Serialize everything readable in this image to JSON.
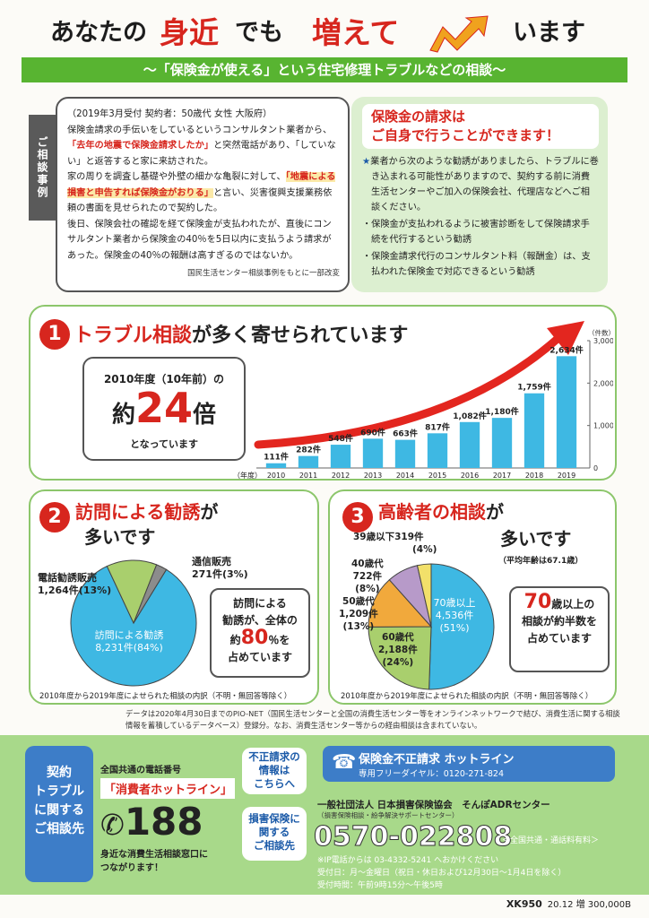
{
  "header": {
    "part1": "あなたの",
    "part2": "身近",
    "part3": "でも",
    "part4": "増えて",
    "part5": "います",
    "subtitle": "～「保険金が使える」という住宅修理トラブルなどの相談～"
  },
  "case": {
    "tab_label": "ご相談事例",
    "header": "（2019年3月受付 契約者：50歳代 女性 大阪府）",
    "p1_a": "保険金請求の手伝いをしているというコンサルタント業者から、",
    "p1_red": "「去年の地震で保険金請求したか」",
    "p1_b": "と突然電話があり、「していない」と返答すると家に来訪された。",
    "p2_a": "家の周りを調査し基礎や外壁の細かな亀裂に対して、",
    "p2_red": "「地震による損害と申告すれば保険金がおりる」",
    "p2_b": "と言い、災害復興支援業務依頼の書面を見せられたので契約した。",
    "p3": "後日、保険会社の確認を経て保険金が支払われたが、直後にコンサルタント業者から保険金の40％を5日以内に支払うよう請求があった。保険金の40％の報酬は高すぎるのではないか。",
    "source": "国民生活センター相談事例をもとに一部改変"
  },
  "advice": {
    "title_line1": "保険金の請求は",
    "title_line2": "ご自身で行うことができます！",
    "star": "★",
    "main": "業者から次のような勧誘がありましたら、トラブルに巻き込まれる可能性がありますので、契約する前に消費生活センターやご加入の保険会社、代理店などへご相談ください。",
    "bullet1": "・保険金が支払われるように被害診断をして保険請求手続を代行するという勧誘",
    "bullet2": "・保険金請求代行のコンサルタント料（報酬金）は、支払われた保険金で対応できるという勧誘"
  },
  "sec1": {
    "num": "1",
    "title_red": "トラブル相談",
    "title_black": "が多く寄せられています",
    "callout_l1": "2010年度（10年前）の",
    "callout_pre": "約",
    "callout_big": "24",
    "callout_post": "倍",
    "callout_l3": "となっています"
  },
  "chart_data": [
    {
      "type": "bar",
      "categories": [
        "2010",
        "2011",
        "2012",
        "2013",
        "2014",
        "2015",
        "2016",
        "2017",
        "2018",
        "2019"
      ],
      "values": [
        111,
        282,
        548,
        690,
        663,
        817,
        1082,
        1180,
        1759,
        2634
      ],
      "value_labels": [
        "111件",
        "282件",
        "548件",
        "690件",
        "663件",
        "817件",
        "1,082件",
        "1,180件",
        "1,759件",
        "2,634件"
      ],
      "xlabel": "（年度）",
      "ylabel": "（件数）",
      "ylim": [
        0,
        3000
      ],
      "yticks": [
        0,
        1000,
        2000,
        3000
      ],
      "ytick_labels": [
        "0",
        "1,000",
        "2,000",
        "3,000"
      ],
      "bar_color": "#3eb8e3"
    },
    {
      "type": "pie",
      "labels": [
        "訪問による勧誘",
        "電話勧誘販売",
        "通信販売"
      ],
      "values": [
        8231,
        1264,
        271
      ],
      "value_labels": [
        "8,231件",
        "1,264件",
        "271件"
      ],
      "percent_labels": [
        "(84%)",
        "(13%)",
        "(3%)"
      ],
      "colors": [
        "#3eb8e3",
        "#a9cf6d",
        "#8c8c8c"
      ]
    },
    {
      "type": "pie",
      "labels": [
        "70歳以上",
        "60歳代",
        "50歳代",
        "40歳代",
        "39歳以下"
      ],
      "values": [
        4536,
        2188,
        1209,
        722,
        319
      ],
      "value_labels": [
        "4,536件",
        "2,188件",
        "1,209件",
        "722件",
        "319件"
      ],
      "percent_labels": [
        "(51%)",
        "(24%)",
        "(13%)",
        "(8%)",
        "(4%)"
      ],
      "colors": [
        "#3eb8e3",
        "#a9cf6d",
        "#f1a93c",
        "#b79ac9",
        "#f2e06a"
      ]
    }
  ],
  "sec2": {
    "num": "2",
    "title_red": "訪問による勧誘",
    "title_black1": "が",
    "title_black2": "多いです",
    "callout_l1": "訪問による",
    "callout_l2": "勧誘が、全体の",
    "callout_pre": "約",
    "callout_big": "80",
    "callout_post": "％を",
    "callout_l4": "占めています",
    "note": "2010年度から2019年度によせられた相談の内訳（不明・無回答等除く）"
  },
  "sec3": {
    "num": "3",
    "title_red": "高齢者の相談",
    "title_black1": "が",
    "title_black2": "多いです",
    "avg_age": "（平均年齢は67.1歳）",
    "callout_big": "70",
    "callout_l1_post": "歳以上の",
    "callout_l2": "相談が約半数を",
    "callout_l3": "占めています",
    "note": "2010年度から2019年度によせられた相談の内訳（不明・無回答等除く）"
  },
  "datanote": "データは2020年4月30日までのPIO-NET（国民生活センターと全国の消費生活センター等をオンラインネットワークで結び、消費生活に関する相談情報を蓄積しているデータベース）登録分。なお、消費生活センター等からの経由相談は含まれていない。",
  "footer": {
    "left": [
      "契約",
      "トラブル",
      "に関する",
      "ご相談先"
    ],
    "common": "全国共通の電話番号",
    "hotline": "「消費者ホットライン」",
    "num": "188",
    "desc1": "身近な消費生活相談窓口に",
    "desc2": "つながります！",
    "btn1": [
      "不正請求の",
      "情報は",
      "こちらへ"
    ],
    "btn2": [
      "損害保険に",
      "関する",
      "ご相談先"
    ],
    "hl_title": "保険金不正請求 ホットライン",
    "hl_sub": "専用フリーダイヤル：0120-271-824",
    "org": "一般社団法人 日本損害保険協会　そんぽADRセンター",
    "org_sub": "（損害保険相談・紛争解決サポートセンター）",
    "adr_num": "0570-022808",
    "adr_area": "＜全国共通・通話料有料＞",
    "ip": "※IP電話からは 03-4332-5241 へおかけください",
    "hours1": "受付日：月～金曜日（祝日・休日および12月30日～1月4日を除く）",
    "hours2": "受付時間：午前9時15分～午後5時"
  },
  "code": "XK950",
  "print_info": "20.12 増 300,000B"
}
